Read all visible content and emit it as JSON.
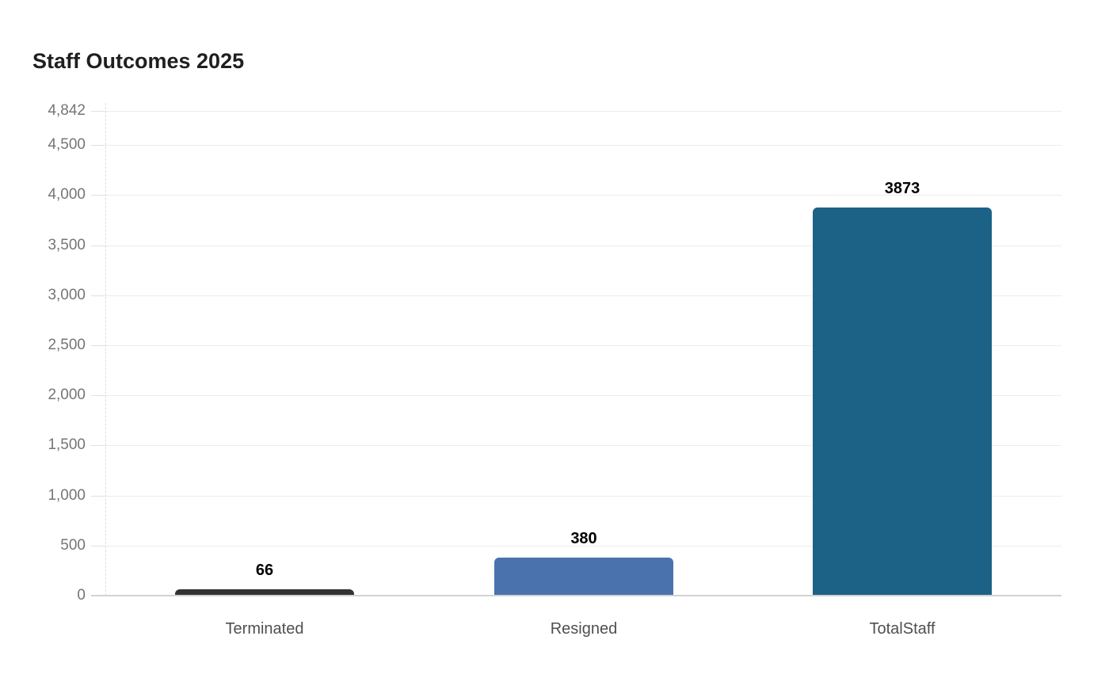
{
  "title": "Staff Outcomes 2025",
  "colors": {
    "background": "#ffffff",
    "title_text": "#1f1f1f",
    "y_tick_text": "#757575",
    "x_label_text": "#4f4f4f",
    "value_label_text": "#000000",
    "gridline": "#ececec",
    "tick_mark": "#e0e0e0",
    "x_axis_line": "#d2d2d2",
    "y_axis_line": "#dddddd"
  },
  "chart_data": {
    "type": "bar",
    "title": "Staff Outcomes 2025",
    "xlabel": "",
    "ylabel": "",
    "categories": [
      "Terminated",
      "Resigned",
      "TotalStaff"
    ],
    "values": [
      66,
      380,
      3873
    ],
    "value_labels": [
      "66",
      "380",
      "3873"
    ],
    "bar_colors": [
      "#333333",
      "#4a72ad",
      "#1b6286"
    ],
    "bar_patterns": [
      "dots",
      "solid",
      "solid"
    ],
    "ylim": [
      0,
      4842
    ],
    "yticks": [
      {
        "value": 4842,
        "label": "4,842"
      },
      {
        "value": 4500,
        "label": "4,500"
      },
      {
        "value": 4000,
        "label": "4,000"
      },
      {
        "value": 3500,
        "label": "3,500"
      },
      {
        "value": 3000,
        "label": "3,000"
      },
      {
        "value": 2500,
        "label": "2,500"
      },
      {
        "value": 2000,
        "label": "2,000"
      },
      {
        "value": 1500,
        "label": "1,500"
      },
      {
        "value": 1000,
        "label": "1,000"
      },
      {
        "value": 500,
        "label": "500"
      },
      {
        "value": 0,
        "label": "0"
      }
    ],
    "grid": "horizontal",
    "legend": "none"
  }
}
